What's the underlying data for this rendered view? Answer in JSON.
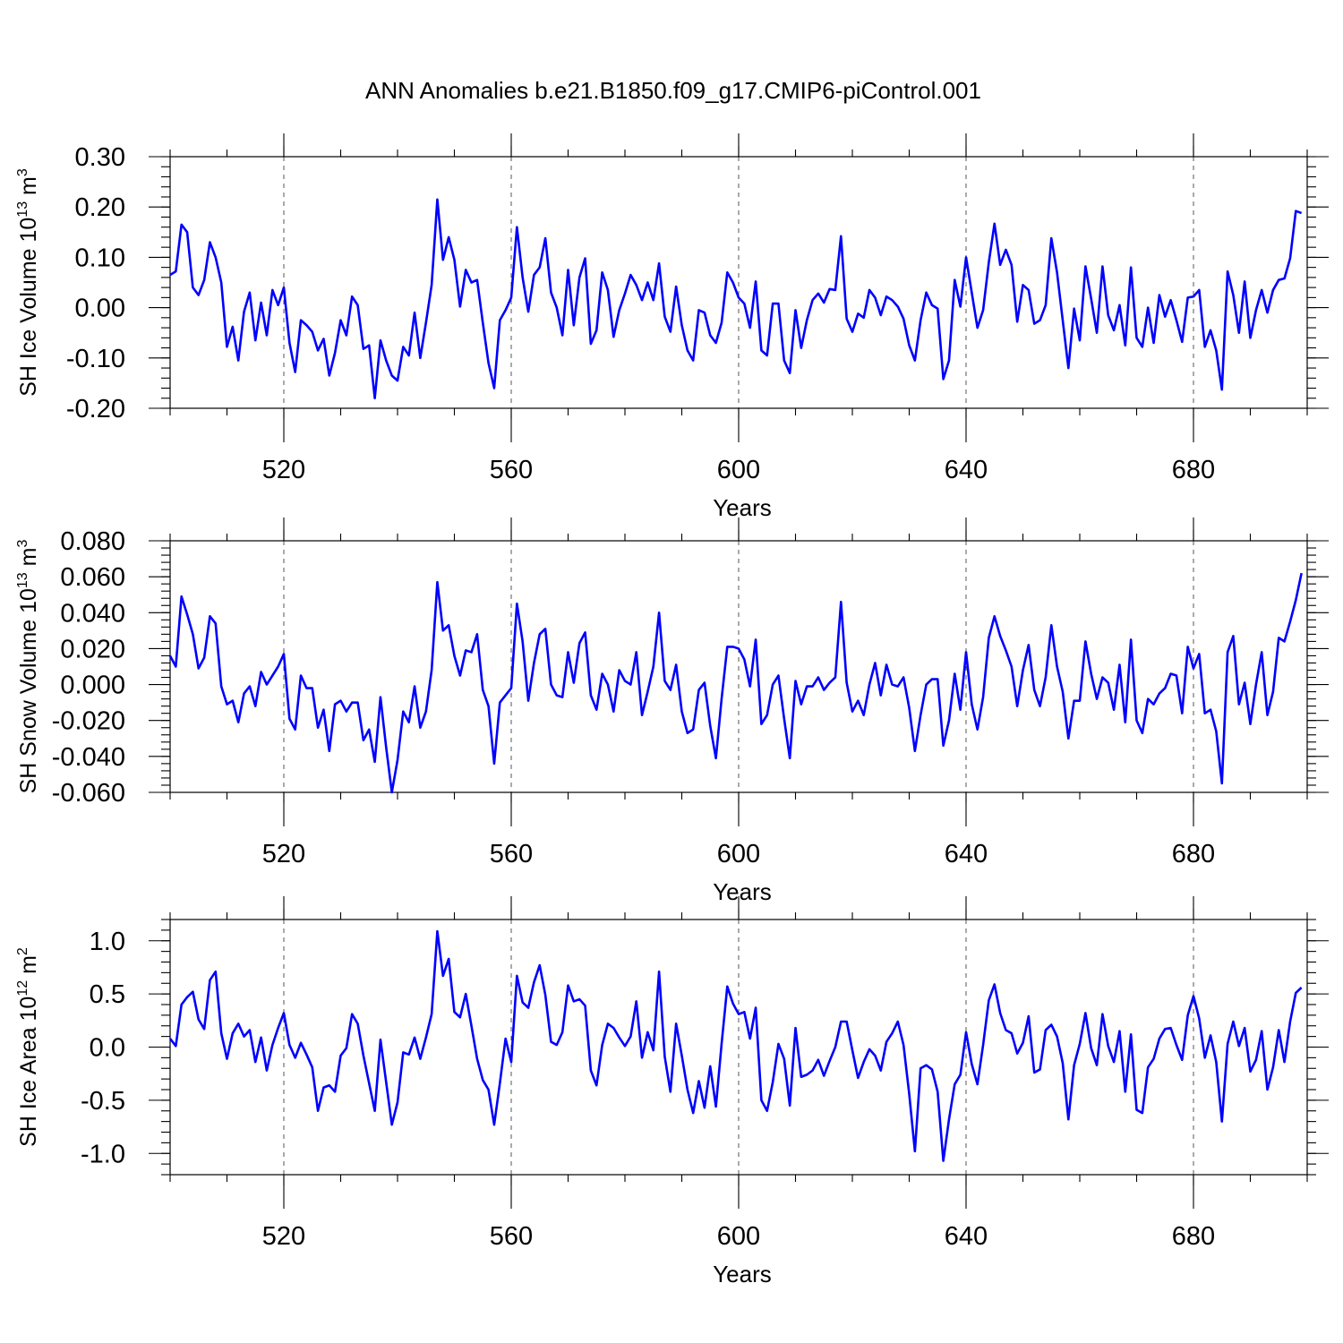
{
  "figure": {
    "title": "ANN Anomalies b.e21.B1850.f09_g17.CMIP6-piControl.001"
  },
  "chart_data": [
    {
      "type": "line",
      "title": "",
      "xlabel": "Years",
      "ylabel": "SH Ice Volume 10",
      "ylabel_sup": "13",
      "ylabel_unit": "m",
      "ylabel_unit_sup": "3",
      "xlim": [
        500,
        700
      ],
      "ylim": [
        -0.2,
        0.3
      ],
      "xticks": [
        520,
        560,
        600,
        640,
        680
      ],
      "xtick_labels": [
        "520",
        "560",
        "600",
        "640",
        "680"
      ],
      "yticks": [
        -0.2,
        -0.1,
        0.0,
        0.1,
        0.2,
        0.3
      ],
      "ytick_labels": [
        "-0.20",
        "-0.10",
        "0.00",
        "0.10",
        "0.20",
        "0.30"
      ],
      "grid": "vertical dashed at x ticks",
      "color": "#0000ff",
      "x_start": 500,
      "values": [
        0.065,
        0.072,
        0.165,
        0.15,
        0.04,
        0.025,
        0.055,
        0.13,
        0.1,
        0.05,
        -0.078,
        -0.038,
        -0.105,
        -0.008,
        0.03,
        -0.065,
        0.01,
        -0.055,
        0.035,
        0.005,
        0.04,
        -0.07,
        -0.128,
        -0.025,
        -0.035,
        -0.048,
        -0.085,
        -0.062,
        -0.135,
        -0.09,
        -0.025,
        -0.055,
        0.022,
        0.005,
        -0.082,
        -0.075,
        -0.18,
        -0.065,
        -0.105,
        -0.135,
        -0.145,
        -0.078,
        -0.095,
        -0.01,
        -0.1,
        -0.03,
        0.045,
        0.215,
        0.095,
        0.14,
        0.095,
        0.002,
        0.075,
        0.05,
        0.055,
        -0.03,
        -0.11,
        -0.16,
        -0.025,
        -0.005,
        0.02,
        0.16,
        0.06,
        -0.008,
        0.065,
        0.08,
        0.138,
        0.03,
        0.0,
        -0.055,
        0.075,
        -0.035,
        0.06,
        0.098,
        -0.072,
        -0.045,
        0.07,
        0.035,
        -0.058,
        -0.005,
        0.028,
        0.065,
        0.045,
        0.015,
        0.05,
        0.015,
        0.088,
        -0.018,
        -0.048,
        0.042,
        -0.035,
        -0.085,
        -0.105,
        -0.005,
        -0.01,
        -0.055,
        -0.07,
        -0.03,
        0.07,
        0.05,
        0.02,
        0.008,
        -0.04,
        0.052,
        -0.085,
        -0.095,
        0.008,
        0.008,
        -0.105,
        -0.13,
        -0.005,
        -0.08,
        -0.025,
        0.015,
        0.028,
        0.01,
        0.037,
        0.035,
        0.142,
        -0.022,
        -0.048,
        -0.012,
        -0.02,
        0.035,
        0.02,
        -0.015,
        0.022,
        0.015,
        0.002,
        -0.022,
        -0.075,
        -0.105,
        -0.025,
        0.03,
        0.005,
        -0.002,
        -0.142,
        -0.105,
        0.055,
        0.002,
        0.1,
        0.03,
        -0.04,
        -0.005,
        0.09,
        0.167,
        0.085,
        0.115,
        0.085,
        -0.028,
        0.045,
        0.035,
        -0.032,
        -0.025,
        0.005,
        0.138,
        0.07,
        -0.025,
        -0.12,
        -0.002,
        -0.065,
        0.082,
        0.018,
        -0.05,
        0.082,
        -0.015,
        -0.045,
        0.005,
        -0.075,
        0.08,
        -0.06,
        -0.078,
        0.0,
        -0.07,
        0.025,
        -0.018,
        0.015,
        -0.025,
        -0.068,
        0.02,
        0.022,
        0.035,
        -0.078,
        -0.045,
        -0.085,
        -0.163,
        0.072,
        0.025,
        -0.05,
        0.052,
        -0.06,
        -0.005,
        0.035,
        -0.01,
        0.035,
        0.055,
        0.058,
        0.098,
        0.192,
        0.188
      ]
    },
    {
      "type": "line",
      "title": "",
      "xlabel": "Years",
      "ylabel": "SH Snow Volume 10",
      "ylabel_sup": "13",
      "ylabel_unit": "m",
      "ylabel_unit_sup": "3",
      "xlim": [
        500,
        700
      ],
      "ylim": [
        -0.06,
        0.08
      ],
      "xticks": [
        520,
        560,
        600,
        640,
        680
      ],
      "xtick_labels": [
        "520",
        "560",
        "600",
        "640",
        "680"
      ],
      "yticks": [
        -0.06,
        -0.04,
        -0.02,
        0.0,
        0.02,
        0.04,
        0.06,
        0.08
      ],
      "ytick_labels": [
        "-0.060",
        "-0.040",
        "-0.020",
        "0.000",
        "0.020",
        "0.040",
        "0.060",
        "0.080"
      ],
      "grid": "vertical dashed at x ticks",
      "color": "#0000ff",
      "x_start": 500,
      "values": [
        0.016,
        0.01,
        0.049,
        0.039,
        0.028,
        0.009,
        0.015,
        0.038,
        0.034,
        -0.001,
        -0.011,
        -0.009,
        -0.021,
        -0.005,
        -0.001,
        -0.012,
        0.007,
        0.0,
        0.005,
        0.01,
        0.017,
        -0.019,
        -0.025,
        0.005,
        -0.002,
        -0.002,
        -0.024,
        -0.014,
        -0.037,
        -0.011,
        -0.009,
        -0.015,
        -0.01,
        -0.01,
        -0.031,
        -0.025,
        -0.043,
        -0.007,
        -0.035,
        -0.06,
        -0.042,
        -0.015,
        -0.021,
        -0.001,
        -0.024,
        -0.015,
        0.008,
        0.057,
        0.03,
        0.033,
        0.016,
        0.005,
        0.019,
        0.018,
        0.028,
        -0.003,
        -0.012,
        -0.044,
        -0.01,
        -0.006,
        -0.002,
        0.045,
        0.024,
        -0.009,
        0.012,
        0.028,
        0.031,
        0.0,
        -0.006,
        -0.007,
        0.018,
        0.001,
        0.023,
        0.029,
        -0.006,
        -0.014,
        0.006,
        0.0,
        -0.015,
        0.008,
        0.002,
        0.0,
        0.018,
        -0.017,
        -0.004,
        0.01,
        0.04,
        0.002,
        -0.003,
        0.011,
        -0.015,
        -0.027,
        -0.025,
        -0.003,
        0.001,
        -0.023,
        -0.041,
        -0.008,
        0.021,
        0.021,
        0.02,
        0.014,
        -0.001,
        0.025,
        -0.022,
        -0.017,
        0.0,
        0.005,
        -0.019,
        -0.041,
        0.002,
        -0.011,
        -0.001,
        -0.001,
        0.004,
        -0.003,
        0.001,
        0.004,
        0.046,
        0.001,
        -0.015,
        -0.009,
        -0.017,
        0.0,
        0.012,
        -0.006,
        0.011,
        0.0,
        -0.001,
        0.004,
        -0.013,
        -0.037,
        -0.017,
        0.0,
        0.003,
        0.003,
        -0.034,
        -0.02,
        0.006,
        -0.014,
        0.018,
        -0.011,
        -0.025,
        -0.007,
        0.026,
        0.038,
        0.027,
        0.019,
        0.01,
        -0.012,
        0.008,
        0.022,
        -0.003,
        -0.012,
        0.004,
        0.033,
        0.01,
        -0.004,
        -0.03,
        -0.009,
        -0.009,
        0.024,
        0.006,
        -0.008,
        0.004,
        0.001,
        -0.014,
        0.011,
        -0.021,
        0.025,
        -0.02,
        -0.027,
        -0.008,
        -0.011,
        -0.005,
        -0.002,
        0.006,
        0.005,
        -0.016,
        0.021,
        0.009,
        0.017,
        -0.016,
        -0.014,
        -0.026,
        -0.055,
        0.018,
        0.027,
        -0.011,
        0.001,
        -0.022,
        0.0,
        0.018,
        -0.017,
        -0.004,
        0.026,
        0.024,
        0.035,
        0.047,
        0.062
      ]
    },
    {
      "type": "line",
      "title": "",
      "xlabel": "Years",
      "ylabel": "SH Ice Area 10",
      "ylabel_sup": "12",
      "ylabel_unit": "m",
      "ylabel_unit_sup": "2",
      "xlim": [
        500,
        700
      ],
      "ylim": [
        -1.2,
        1.2
      ],
      "xticks": [
        520,
        560,
        600,
        640,
        680
      ],
      "xtick_labels": [
        "520",
        "560",
        "600",
        "640",
        "680"
      ],
      "yticks": [
        -1.0,
        -0.5,
        0.0,
        0.5,
        1.0
      ],
      "ytick_labels": [
        "-1.0",
        "-0.5",
        "0.0",
        "0.5",
        "1.0"
      ],
      "grid": "vertical dashed at x ticks",
      "color": "#0000ff",
      "x_start": 500,
      "values": [
        0.08,
        0.01,
        0.4,
        0.47,
        0.52,
        0.26,
        0.17,
        0.63,
        0.71,
        0.13,
        -0.11,
        0.13,
        0.22,
        0.1,
        0.16,
        -0.14,
        0.09,
        -0.22,
        0.02,
        0.18,
        0.32,
        0.02,
        -0.1,
        0.04,
        -0.07,
        -0.19,
        -0.6,
        -0.38,
        -0.36,
        -0.42,
        -0.08,
        -0.01,
        0.31,
        0.22,
        -0.08,
        -0.34,
        -0.6,
        0.07,
        -0.33,
        -0.73,
        -0.52,
        -0.05,
        -0.07,
        0.09,
        -0.11,
        0.09,
        0.31,
        1.09,
        0.67,
        0.83,
        0.33,
        0.28,
        0.5,
        0.2,
        -0.11,
        -0.31,
        -0.4,
        -0.73,
        -0.34,
        0.08,
        -0.14,
        0.67,
        0.42,
        0.37,
        0.61,
        0.77,
        0.49,
        0.05,
        0.02,
        0.14,
        0.58,
        0.43,
        0.45,
        0.39,
        -0.22,
        -0.36,
        0.02,
        0.22,
        0.18,
        0.09,
        0.01,
        0.1,
        0.43,
        -0.1,
        0.14,
        -0.03,
        0.71,
        -0.09,
        -0.42,
        0.22,
        -0.08,
        -0.4,
        -0.62,
        -0.32,
        -0.57,
        -0.18,
        -0.56,
        0.03,
        0.57,
        0.41,
        0.31,
        0.33,
        0.08,
        0.37,
        -0.5,
        -0.6,
        -0.33,
        0.03,
        -0.11,
        -0.55,
        0.18,
        -0.28,
        -0.26,
        -0.22,
        -0.12,
        -0.27,
        -0.13,
        0.0,
        0.24,
        0.24,
        -0.03,
        -0.29,
        -0.14,
        -0.02,
        -0.08,
        -0.22,
        0.05,
        0.13,
        0.24,
        0.02,
        -0.44,
        -0.98,
        -0.2,
        -0.17,
        -0.21,
        -0.42,
        -1.07,
        -0.68,
        -0.35,
        -0.26,
        0.14,
        -0.16,
        -0.35,
        0.02,
        0.44,
        0.59,
        0.32,
        0.16,
        0.13,
        -0.06,
        0.04,
        0.29,
        -0.24,
        -0.21,
        0.16,
        0.21,
        0.1,
        -0.15,
        -0.68,
        -0.17,
        0.03,
        0.32,
        -0.01,
        -0.17,
        0.31,
        0.01,
        -0.14,
        0.15,
        -0.42,
        0.12,
        -0.59,
        -0.62,
        -0.19,
        -0.11,
        0.08,
        0.17,
        0.18,
        0.02,
        -0.12,
        0.3,
        0.48,
        0.27,
        -0.1,
        0.11,
        -0.14,
        -0.7,
        0.03,
        0.24,
        0.01,
        0.18,
        -0.23,
        -0.12,
        0.15,
        -0.4,
        -0.19,
        0.16,
        -0.14,
        0.24,
        0.51,
        0.56
      ]
    }
  ]
}
